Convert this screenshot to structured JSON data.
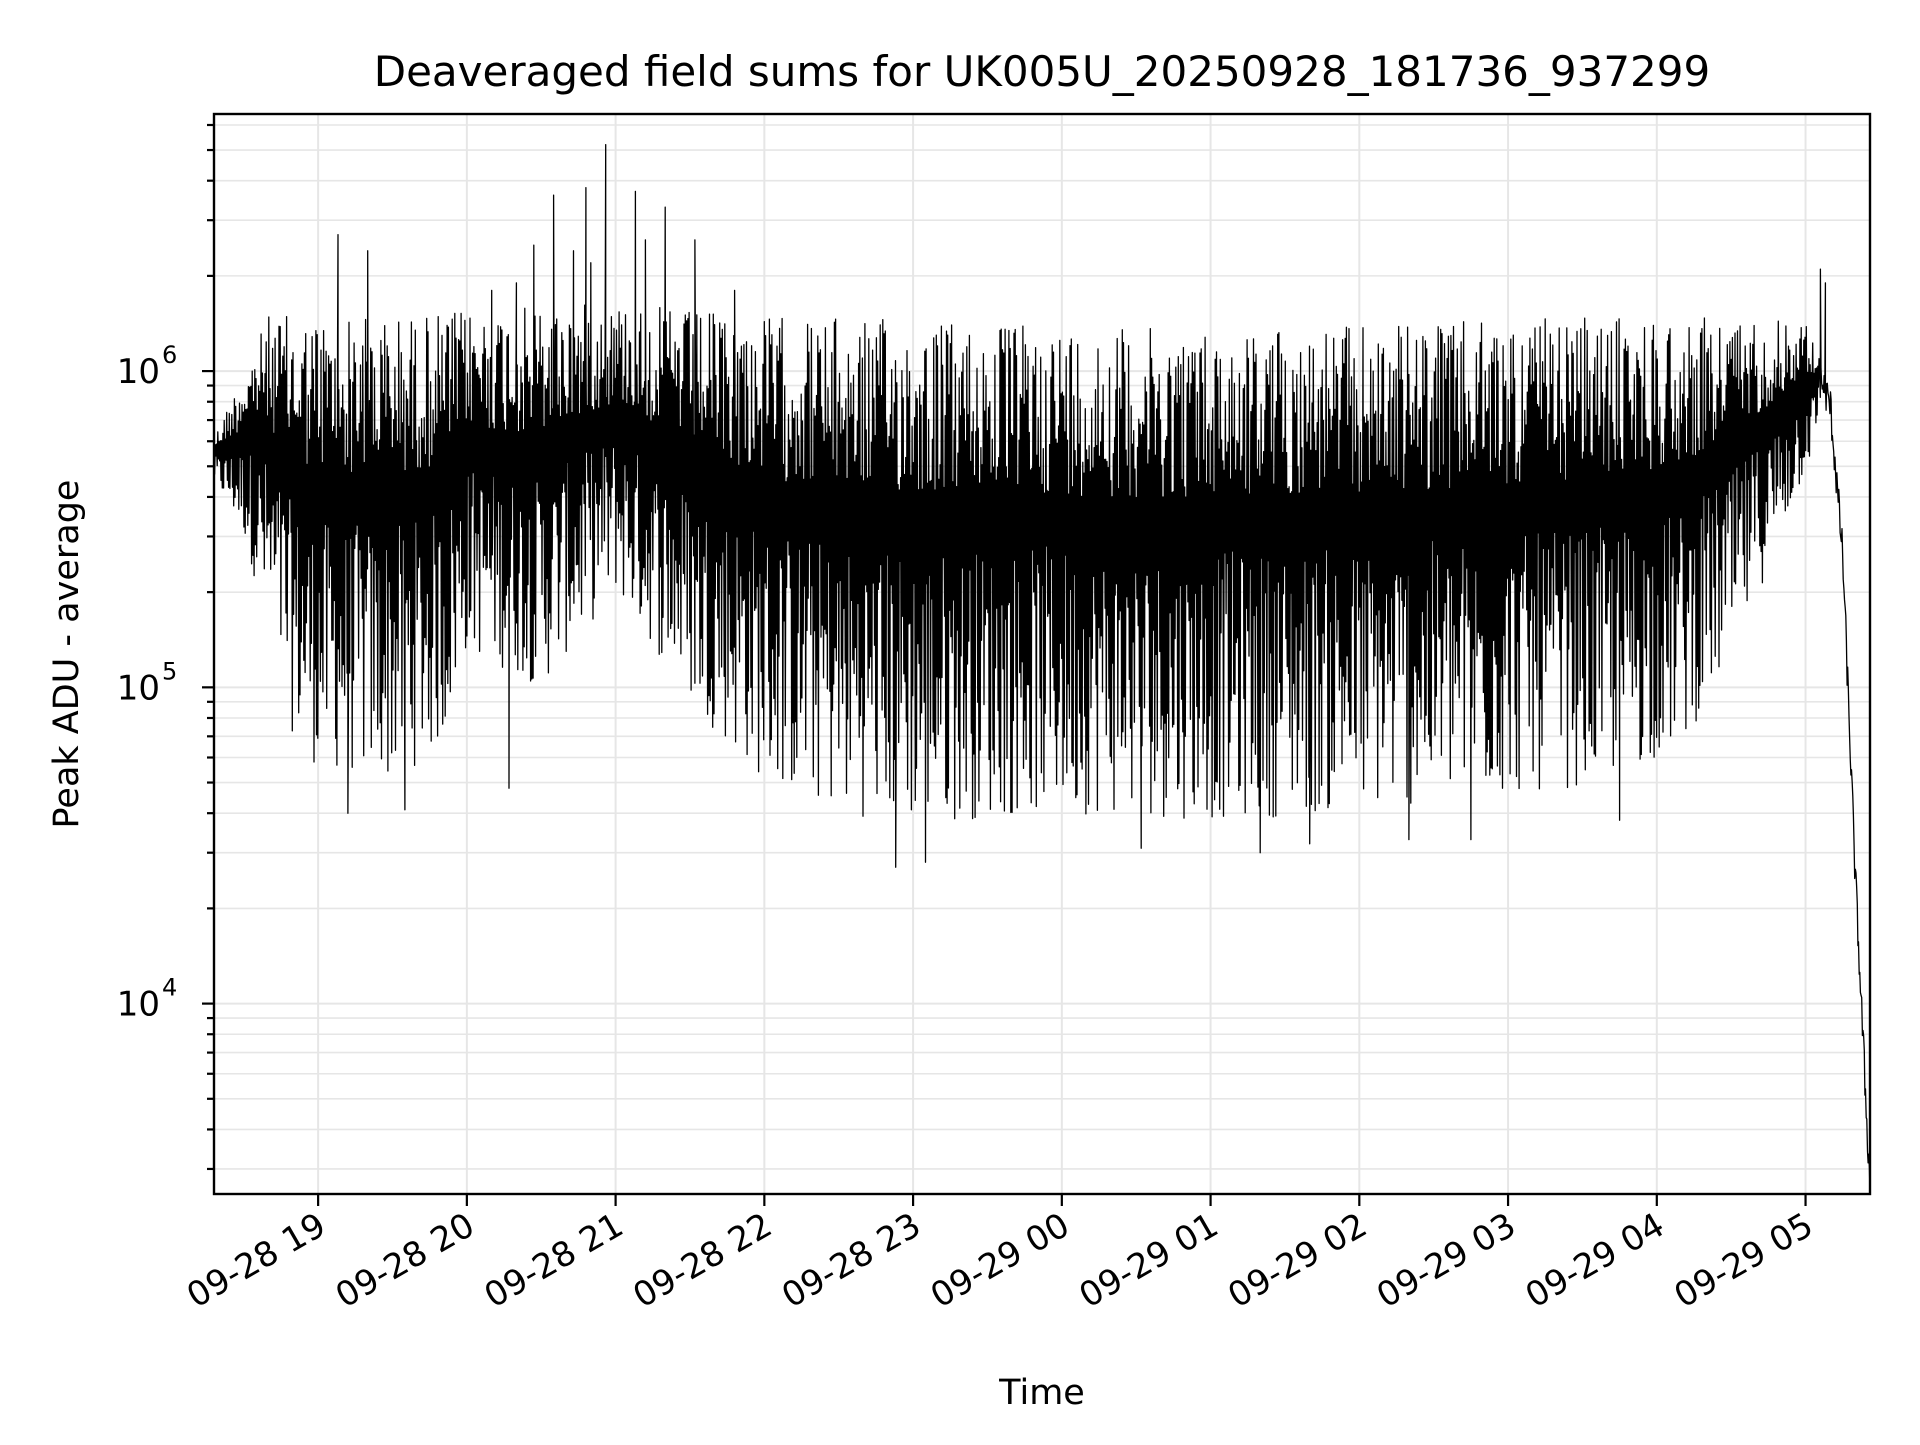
{
  "chart_data": {
    "type": "line",
    "title": "Deaveraged field sums for UK005U_20250928_181736_937299",
    "xlabel": "Time",
    "ylabel": "Peak ADU - average",
    "yscale": "log",
    "ylim": [
      2500,
      6500000
    ],
    "xlim": [
      "2025-09-28 18:18",
      "2025-09-29 05:26"
    ],
    "grid": true,
    "x_ticks": [
      {
        "value": "2025-09-28 19:00",
        "label": "09-28 19"
      },
      {
        "value": "2025-09-28 20:00",
        "label": "09-28 20"
      },
      {
        "value": "2025-09-28 21:00",
        "label": "09-28 21"
      },
      {
        "value": "2025-09-28 22:00",
        "label": "09-28 22"
      },
      {
        "value": "2025-09-28 23:00",
        "label": "09-28 23"
      },
      {
        "value": "2025-09-29 00:00",
        "label": "09-29 00"
      },
      {
        "value": "2025-09-29 01:00",
        "label": "09-29 01"
      },
      {
        "value": "2025-09-29 02:00",
        "label": "09-29 02"
      },
      {
        "value": "2025-09-29 03:00",
        "label": "09-29 03"
      },
      {
        "value": "2025-09-29 04:00",
        "label": "09-29 04"
      },
      {
        "value": "2025-09-29 05:00",
        "label": "09-29 05"
      }
    ],
    "y_ticks": [
      {
        "value": 10000,
        "base": "10",
        "exp": "4"
      },
      {
        "value": 100000,
        "base": "10",
        "exp": "5"
      },
      {
        "value": 1000000,
        "base": "10",
        "exp": "6"
      }
    ],
    "series": [
      {
        "color": "#000000",
        "envelope_upper": [
          [
            "2025-09-28 18:18",
            620000
          ],
          [
            "2025-09-28 18:30",
            1000000
          ],
          [
            "2025-09-28 18:40",
            1500000
          ],
          [
            "2025-09-28 19:00",
            1500000
          ],
          [
            "2025-09-28 19:30",
            1500000
          ],
          [
            "2025-09-28 20:00",
            1550000
          ],
          [
            "2025-09-28 20:30",
            1600000
          ],
          [
            "2025-09-28 21:00",
            1650000
          ],
          [
            "2025-09-28 21:30",
            1550000
          ],
          [
            "2025-09-28 22:00",
            1500000
          ],
          [
            "2025-09-28 23:00",
            1450000
          ],
          [
            "2025-09-29 00:00",
            1400000
          ],
          [
            "2025-09-29 01:00",
            1350000
          ],
          [
            "2025-09-29 02:00",
            1400000
          ],
          [
            "2025-09-29 03:00",
            1450000
          ],
          [
            "2025-09-29 04:00",
            1500000
          ],
          [
            "2025-09-29 05:00",
            1450000
          ],
          [
            "2025-09-29 05:10",
            900000
          ],
          [
            "2025-09-29 05:15",
            300000
          ],
          [
            "2025-09-29 05:20",
            30000
          ],
          [
            "2025-09-29 05:26",
            3000
          ]
        ],
        "envelope_lower": [
          [
            "2025-09-28 18:18",
            450000
          ],
          [
            "2025-09-28 18:30",
            300000
          ],
          [
            "2025-09-28 18:40",
            150000
          ],
          [
            "2025-09-28 18:50",
            70000
          ],
          [
            "2025-09-28 19:00",
            55000
          ],
          [
            "2025-09-28 19:30",
            50000
          ],
          [
            "2025-09-28 19:50",
            65000
          ],
          [
            "2025-09-28 20:00",
            130000
          ],
          [
            "2025-09-28 20:30",
            100000
          ],
          [
            "2025-09-28 21:00",
            200000
          ],
          [
            "2025-09-28 21:30",
            90000
          ],
          [
            "2025-09-28 21:50",
            60000
          ],
          [
            "2025-09-28 22:00",
            50000
          ],
          [
            "2025-09-28 22:30",
            40000
          ],
          [
            "2025-09-28 23:00",
            37000
          ],
          [
            "2025-09-29 00:00",
            40000
          ],
          [
            "2025-09-29 01:00",
            38000
          ],
          [
            "2025-09-29 02:00",
            40000
          ],
          [
            "2025-09-29 03:00",
            45000
          ],
          [
            "2025-09-29 03:40",
            50000
          ],
          [
            "2025-09-29 04:10",
            65000
          ],
          [
            "2025-09-29 04:30",
            120000
          ],
          [
            "2025-09-29 04:50",
            300000
          ],
          [
            "2025-09-29 05:05",
            600000
          ]
        ],
        "peaks": [
          [
            "2025-09-28 19:08",
            2700000
          ],
          [
            "2025-09-28 19:18",
            1200000
          ],
          [
            "2025-09-28 19:20",
            2400000
          ],
          [
            "2025-09-28 20:10",
            1800000
          ],
          [
            "2025-09-28 20:20",
            1900000
          ],
          [
            "2025-09-28 20:27",
            2500000
          ],
          [
            "2025-09-28 20:35",
            3600000
          ],
          [
            "2025-09-28 20:43",
            2400000
          ],
          [
            "2025-09-28 20:48",
            3800000
          ],
          [
            "2025-09-28 20:50",
            2200000
          ],
          [
            "2025-09-28 20:56",
            5200000
          ],
          [
            "2025-09-28 21:08",
            3700000
          ],
          [
            "2025-09-28 21:12",
            2600000
          ],
          [
            "2025-09-28 21:20",
            3300000
          ],
          [
            "2025-09-28 21:32",
            2600000
          ],
          [
            "2025-09-28 21:48",
            1800000
          ],
          [
            "2025-09-29 05:06",
            2100000
          ],
          [
            "2025-09-29 05:08",
            1900000
          ]
        ],
        "dips": [
          [
            "2025-09-28 19:12",
            40000
          ],
          [
            "2025-09-28 19:35",
            41000
          ],
          [
            "2025-09-28 20:17",
            48000
          ],
          [
            "2025-09-28 22:53",
            27000
          ],
          [
            "2025-09-28 23:05",
            28000
          ],
          [
            "2025-09-29 00:32",
            31000
          ],
          [
            "2025-09-29 01:20",
            30000
          ],
          [
            "2025-09-29 01:40",
            32000
          ],
          [
            "2025-09-29 02:20",
            33000
          ],
          [
            "2025-09-29 02:45",
            33000
          ],
          [
            "2025-09-29 03:45",
            38000
          ]
        ]
      }
    ]
  }
}
